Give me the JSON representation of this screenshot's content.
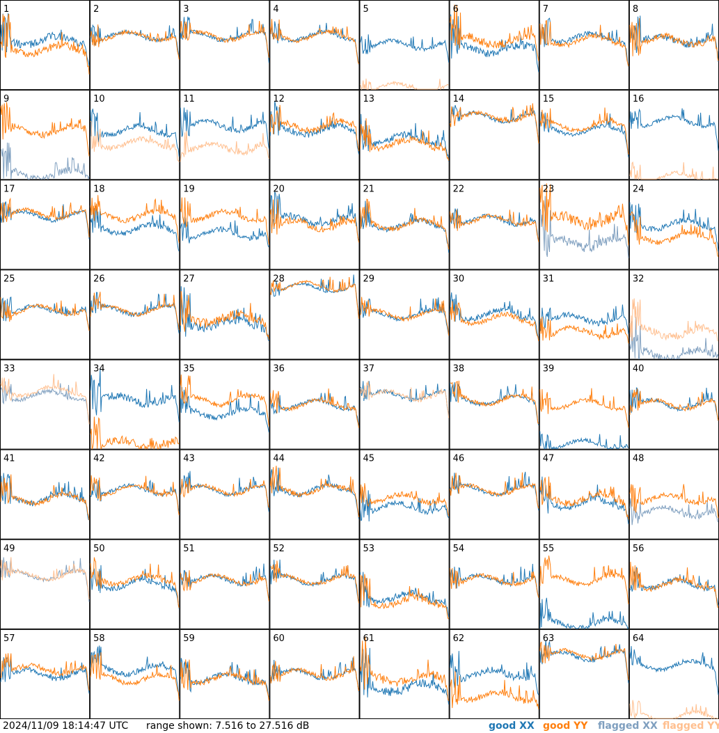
{
  "footer": {
    "timestamp": "2024/11/09 18:14:47 UTC",
    "range": "range shown: 7.516 to 27.516 dB"
  },
  "legend": {
    "good_xx": "good XX",
    "good_yy": "good YY",
    "flagged_xx": "flagged XX",
    "flagged_yy": "flagged YY"
  },
  "colors": {
    "good_xx": "#1f77b4",
    "good_yy": "#ff7f0e",
    "flagged_xx": "#7f9fbf",
    "flagged_yy": "#ffbf8f"
  },
  "chart_data": {
    "type": "line",
    "grid": "8x8 small multiples",
    "ylim": [
      7.516,
      27.516
    ],
    "tiles": [
      {
        "id": "1",
        "xx": "good",
        "yy": "good",
        "xx_level": 0.55,
        "yy_level": 0.45,
        "noise": 0.6
      },
      {
        "id": "2",
        "xx": "good",
        "yy": "good",
        "xx_level": 0.6,
        "yy_level": 0.6,
        "noise": 0.3
      },
      {
        "id": "3",
        "xx": "good",
        "yy": "good",
        "xx_level": 0.6,
        "yy_level": 0.6,
        "noise": 0.3
      },
      {
        "id": "4",
        "xx": "good",
        "yy": "good",
        "xx_level": 0.6,
        "yy_level": 0.6,
        "noise": 0.3
      },
      {
        "id": "5",
        "xx": "good",
        "yy": "flagged",
        "xx_level": 0.5,
        "yy_level": 0.02,
        "noise": 0.3
      },
      {
        "id": "6",
        "xx": "good",
        "yy": "good",
        "xx_level": 0.45,
        "yy_level": 0.55,
        "noise": 0.6
      },
      {
        "id": "7",
        "xx": "good",
        "yy": "good",
        "xx_level": 0.58,
        "yy_level": 0.55,
        "noise": 0.4
      },
      {
        "id": "8",
        "xx": "good",
        "yy": "good",
        "xx_level": 0.55,
        "yy_level": 0.55,
        "noise": 0.5
      },
      {
        "id": "9",
        "xx": "flagged",
        "yy": "good",
        "xx_level": 0.05,
        "yy_level": 0.55,
        "noise": 0.5
      },
      {
        "id": "10",
        "xx": "good",
        "yy": "flagged",
        "xx_level": 0.55,
        "yy_level": 0.4,
        "noise": 0.4
      },
      {
        "id": "11",
        "xx": "good",
        "yy": "flagged",
        "xx_level": 0.6,
        "yy_level": 0.35,
        "noise": 0.4
      },
      {
        "id": "12",
        "xx": "good",
        "yy": "good",
        "xx_level": 0.55,
        "yy_level": 0.6,
        "noise": 0.5
      },
      {
        "id": "13",
        "xx": "good",
        "yy": "good",
        "xx_level": 0.45,
        "yy_level": 0.4,
        "noise": 0.5
      },
      {
        "id": "14",
        "xx": "good",
        "yy": "good",
        "xx_level": 0.7,
        "yy_level": 0.7,
        "noise": 0.3
      },
      {
        "id": "15",
        "xx": "good",
        "yy": "good",
        "xx_level": 0.55,
        "yy_level": 0.6,
        "noise": 0.3
      },
      {
        "id": "16",
        "xx": "good",
        "yy": "flagged",
        "xx_level": 0.65,
        "yy_level": 0.02,
        "noise": 0.3
      },
      {
        "id": "17",
        "xx": "good",
        "yy": "good",
        "xx_level": 0.6,
        "yy_level": 0.62,
        "noise": 0.3
      },
      {
        "id": "18",
        "xx": "good",
        "yy": "good",
        "xx_level": 0.45,
        "yy_level": 0.6,
        "noise": 0.4
      },
      {
        "id": "19",
        "xx": "good",
        "yy": "good",
        "xx_level": 0.4,
        "yy_level": 0.6,
        "noise": 0.4
      },
      {
        "id": "20",
        "xx": "good",
        "yy": "good",
        "xx_level": 0.55,
        "yy_level": 0.5,
        "noise": 0.5
      },
      {
        "id": "21",
        "xx": "good",
        "yy": "good",
        "xx_level": 0.5,
        "yy_level": 0.5,
        "noise": 0.4
      },
      {
        "id": "22",
        "xx": "good",
        "yy": "good",
        "xx_level": 0.55,
        "yy_level": 0.55,
        "noise": 0.3
      },
      {
        "id": "23",
        "xx": "flagged",
        "yy": "good",
        "xx_level": 0.3,
        "yy_level": 0.55,
        "noise": 0.8
      },
      {
        "id": "24",
        "xx": "good",
        "yy": "good",
        "xx_level": 0.5,
        "yy_level": 0.35,
        "noise": 0.4
      },
      {
        "id": "25",
        "xx": "good",
        "yy": "good",
        "xx_level": 0.55,
        "yy_level": 0.55,
        "noise": 0.3
      },
      {
        "id": "26",
        "xx": "good",
        "yy": "good",
        "xx_level": 0.55,
        "yy_level": 0.55,
        "noise": 0.3
      },
      {
        "id": "27",
        "xx": "good",
        "yy": "good",
        "xx_level": 0.4,
        "yy_level": 0.45,
        "noise": 0.7
      },
      {
        "id": "28",
        "xx": "good",
        "yy": "good",
        "xx_level": 0.8,
        "yy_level": 0.82,
        "noise": 0.2
      },
      {
        "id": "29",
        "xx": "good",
        "yy": "good",
        "xx_level": 0.5,
        "yy_level": 0.5,
        "noise": 0.3
      },
      {
        "id": "30",
        "xx": "good",
        "yy": "good",
        "xx_level": 0.5,
        "yy_level": 0.45,
        "noise": 0.4
      },
      {
        "id": "31",
        "xx": "good",
        "yy": "good",
        "xx_level": 0.45,
        "yy_level": 0.3,
        "noise": 0.4
      },
      {
        "id": "32",
        "xx": "flagged",
        "yy": "flagged",
        "xx_level": 0.05,
        "yy_level": 0.3,
        "noise": 0.6
      },
      {
        "id": "33",
        "xx": "flagged",
        "yy": "flagged",
        "xx_level": 0.6,
        "yy_level": 0.65,
        "noise": 0.3
      },
      {
        "id": "34",
        "xx": "good",
        "yy": "good",
        "xx_level": 0.55,
        "yy_level": 0.05,
        "noise": 0.6
      },
      {
        "id": "35",
        "xx": "good",
        "yy": "good",
        "xx_level": 0.4,
        "yy_level": 0.55,
        "noise": 0.4
      },
      {
        "id": "36",
        "xx": "good",
        "yy": "good",
        "xx_level": 0.5,
        "yy_level": 0.5,
        "noise": 0.3
      },
      {
        "id": "37",
        "xx": "good",
        "yy": "flagged",
        "xx_level": 0.6,
        "yy_level": 0.6,
        "noise": 0.3
      },
      {
        "id": "38",
        "xx": "good",
        "yy": "good",
        "xx_level": 0.55,
        "yy_level": 0.55,
        "noise": 0.3
      },
      {
        "id": "39",
        "xx": "good",
        "yy": "good",
        "xx_level": 0.05,
        "yy_level": 0.5,
        "noise": 0.3
      },
      {
        "id": "40",
        "xx": "good",
        "yy": "good",
        "xx_level": 0.5,
        "yy_level": 0.5,
        "noise": 0.3
      },
      {
        "id": "41",
        "xx": "good",
        "yy": "good",
        "xx_level": 0.45,
        "yy_level": 0.45,
        "noise": 0.4
      },
      {
        "id": "42",
        "xx": "good",
        "yy": "good",
        "xx_level": 0.55,
        "yy_level": 0.55,
        "noise": 0.3
      },
      {
        "id": "43",
        "xx": "good",
        "yy": "good",
        "xx_level": 0.55,
        "yy_level": 0.55,
        "noise": 0.3
      },
      {
        "id": "44",
        "xx": "good",
        "yy": "good",
        "xx_level": 0.55,
        "yy_level": 0.55,
        "noise": 0.4
      },
      {
        "id": "45",
        "xx": "good",
        "yy": "good",
        "xx_level": 0.35,
        "yy_level": 0.45,
        "noise": 0.4
      },
      {
        "id": "46",
        "xx": "good",
        "yy": "good",
        "xx_level": 0.55,
        "yy_level": 0.55,
        "noise": 0.3
      },
      {
        "id": "47",
        "xx": "good",
        "yy": "good",
        "xx_level": 0.4,
        "yy_level": 0.45,
        "noise": 0.5
      },
      {
        "id": "48",
        "xx": "flagged",
        "yy": "good",
        "xx_level": 0.3,
        "yy_level": 0.45,
        "noise": 0.4
      },
      {
        "id": "49",
        "xx": "flagged",
        "yy": "flagged",
        "xx_level": 0.6,
        "yy_level": 0.6,
        "noise": 0.3
      },
      {
        "id": "50",
        "xx": "good",
        "yy": "good",
        "xx_level": 0.5,
        "yy_level": 0.55,
        "noise": 0.4
      },
      {
        "id": "51",
        "xx": "good",
        "yy": "good",
        "xx_level": 0.55,
        "yy_level": 0.55,
        "noise": 0.3
      },
      {
        "id": "52",
        "xx": "good",
        "yy": "good",
        "xx_level": 0.55,
        "yy_level": 0.55,
        "noise": 0.3
      },
      {
        "id": "53",
        "xx": "good",
        "yy": "good",
        "xx_level": 0.35,
        "yy_level": 0.3,
        "noise": 0.5
      },
      {
        "id": "54",
        "xx": "good",
        "yy": "good",
        "xx_level": 0.55,
        "yy_level": 0.55,
        "noise": 0.3
      },
      {
        "id": "55",
        "xx": "good",
        "yy": "good",
        "xx_level": 0.05,
        "yy_level": 0.55,
        "noise": 0.4
      },
      {
        "id": "56",
        "xx": "good",
        "yy": "good",
        "xx_level": 0.5,
        "yy_level": 0.5,
        "noise": 0.4
      },
      {
        "id": "57",
        "xx": "good",
        "yy": "good",
        "xx_level": 0.5,
        "yy_level": 0.55,
        "noise": 0.4
      },
      {
        "id": "58",
        "xx": "good",
        "yy": "good",
        "xx_level": 0.55,
        "yy_level": 0.45,
        "noise": 0.4
      },
      {
        "id": "59",
        "xx": "good",
        "yy": "good",
        "xx_level": 0.45,
        "yy_level": 0.45,
        "noise": 0.4
      },
      {
        "id": "60",
        "xx": "good",
        "yy": "good",
        "xx_level": 0.5,
        "yy_level": 0.5,
        "noise": 0.3
      },
      {
        "id": "61",
        "xx": "good",
        "yy": "good",
        "xx_level": 0.35,
        "yy_level": 0.45,
        "noise": 0.7
      },
      {
        "id": "62",
        "xx": "good",
        "yy": "good",
        "xx_level": 0.5,
        "yy_level": 0.25,
        "noise": 0.5
      },
      {
        "id": "63",
        "xx": "good",
        "yy": "good",
        "xx_level": 0.7,
        "yy_level": 0.72,
        "noise": 0.3
      },
      {
        "id": "64",
        "xx": "good",
        "yy": "flagged",
        "xx_level": 0.6,
        "yy_level": 0.02,
        "noise": 0.3
      }
    ]
  }
}
